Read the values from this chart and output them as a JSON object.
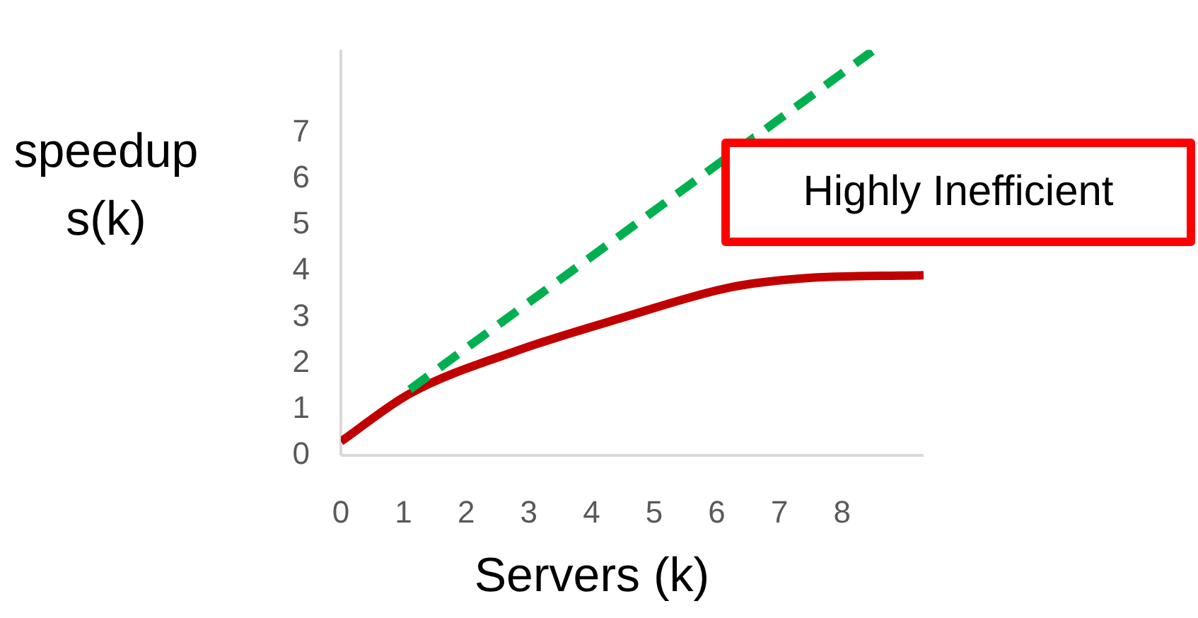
{
  "chart_data": {
    "type": "line",
    "xlabel": "Servers (k)",
    "ylabel": "speedup s(k)",
    "annotations": [
      "Highly Inefficient"
    ],
    "xlim": [
      0,
      9.3
    ],
    "ylim": [
      0,
      8.8
    ],
    "xticks": [
      0,
      1,
      2,
      3,
      4,
      5,
      6,
      7,
      8
    ],
    "yticks": [
      0,
      1,
      2,
      3,
      4,
      5,
      6,
      7
    ],
    "series": [
      {
        "type": "line",
        "color": "#00b050",
        "line_style": "dashed",
        "x": [
          1.1,
          8.48
        ],
        "values": [
          1.43,
          8.77
        ]
      },
      {
        "type": "line",
        "color": "#c00000",
        "line_style": "solid",
        "x": [
          0,
          1.1,
          2.83,
          4.5,
          6.23,
          7.36,
          9.3
        ],
        "values": [
          0.3,
          1.34,
          2.28,
          2.99,
          3.65,
          3.84,
          3.91
        ]
      }
    ]
  }
}
